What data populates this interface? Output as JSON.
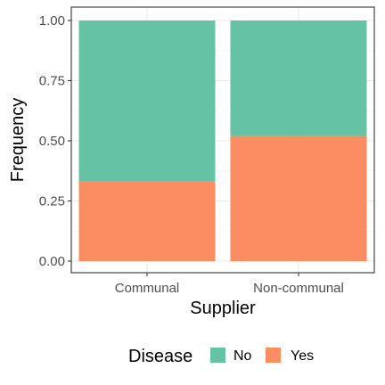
{
  "chart_data": {
    "type": "bar",
    "stacked": true,
    "categories": [
      "Communal",
      "Non-communal"
    ],
    "series": [
      {
        "name": "No",
        "values": [
          0.67,
          0.48
        ],
        "color": "#66c2a5"
      },
      {
        "name": "Yes",
        "values": [
          0.33,
          0.52
        ],
        "color": "#fc8d62"
      }
    ],
    "xlabel": "Supplier",
    "ylabel": "Frequency",
    "ylim": [
      0,
      1
    ],
    "yticks": [
      "0.00",
      "0.25",
      "0.50",
      "0.75",
      "1.00"
    ],
    "ytick_values": [
      0,
      0.25,
      0.5,
      0.75,
      1
    ],
    "grid": true,
    "legend": {
      "title": "Disease",
      "position": "bottom"
    }
  }
}
